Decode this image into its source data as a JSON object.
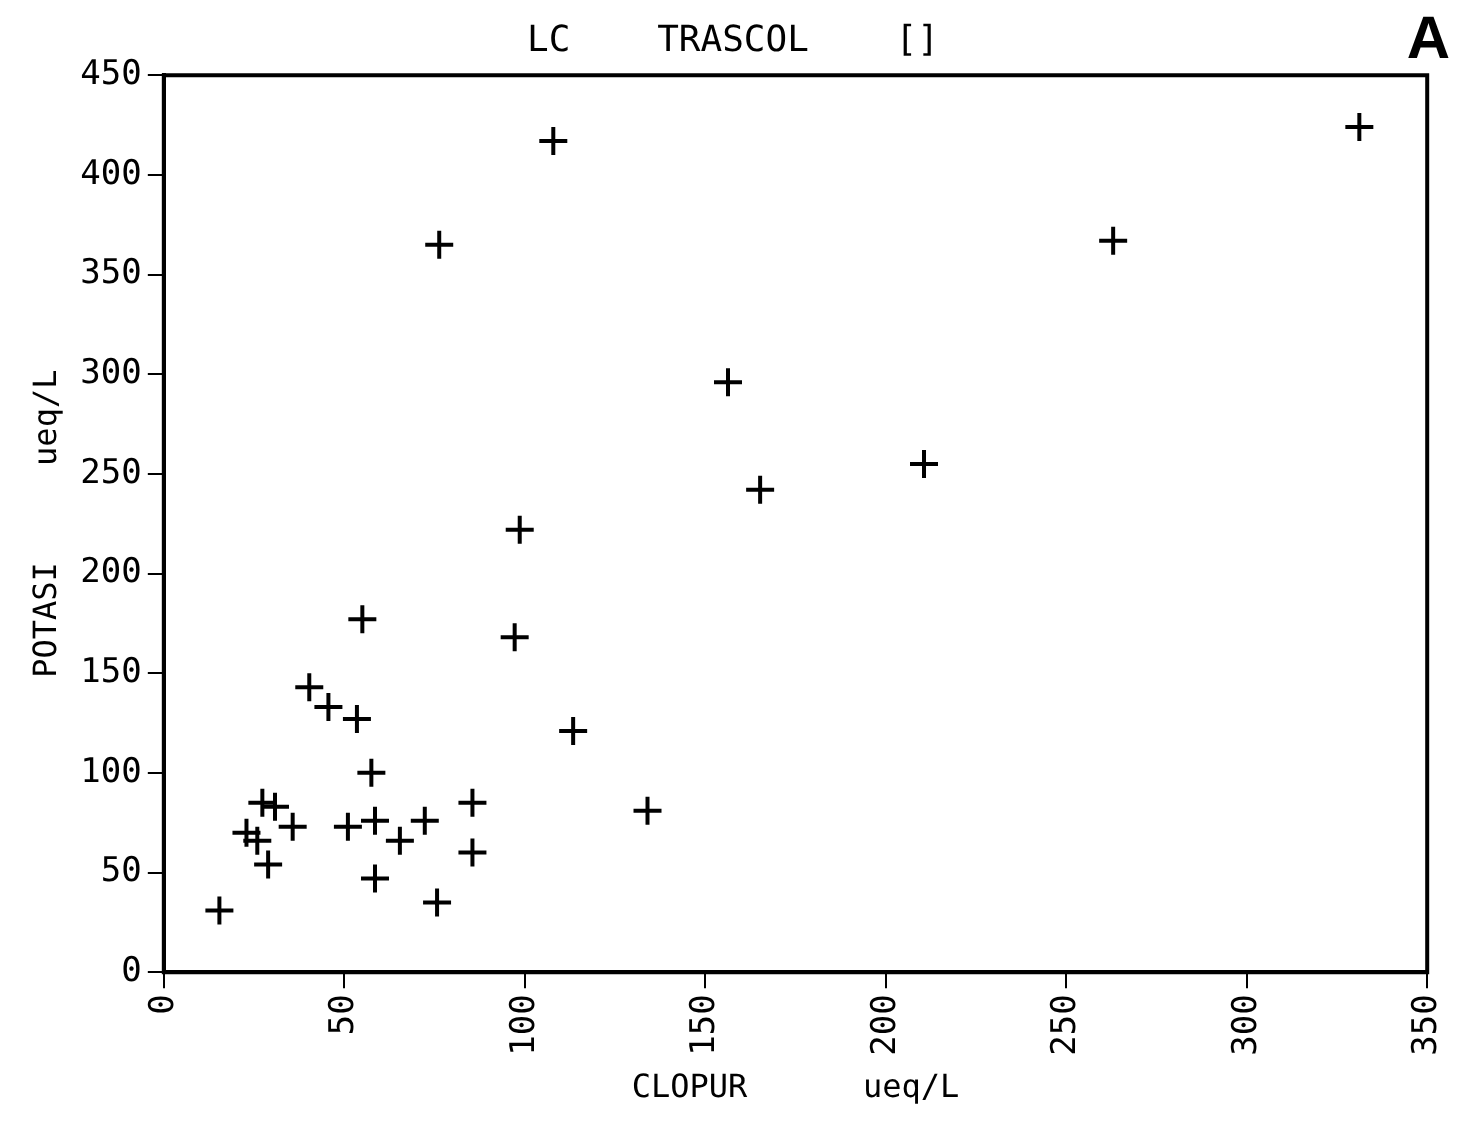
{
  "chart_data": {
    "type": "scatter",
    "title": "LC    TRASCOL    []",
    "xlabel": "CLOPUR      ueq/L",
    "ylabel": "POTASI     ueq/L",
    "annotations": [
      "A"
    ],
    "marker": "cross",
    "grid": false,
    "legend": false,
    "xlim": [
      0,
      350
    ],
    "xticks": [
      0,
      50,
      100,
      150,
      200,
      250,
      300,
      350
    ],
    "ylim": [
      0,
      450
    ],
    "yticks": [
      0,
      50,
      100,
      150,
      200,
      250,
      300,
      350,
      400,
      450
    ],
    "series": [
      {
        "color": "#000000",
        "x": [
          15.4,
          22.9,
          25.9,
          27.3,
          30.8,
          35.7,
          28.9,
          40.3,
          45.6,
          53.5,
          55,
          57.5,
          51,
          58.5,
          58.5,
          65.4,
          72.3,
          75.7,
          85.5,
          85.5,
          97.2,
          98.6,
          113.4,
          134,
          107.9,
          76.3,
          156.3,
          165.2,
          331.2,
          263,
          210.6
        ],
        "values": [
          31,
          70,
          66,
          85,
          83,
          73,
          54,
          143,
          133,
          127,
          177,
          100,
          73,
          76,
          47,
          66,
          76,
          35,
          85,
          60,
          168,
          222,
          121,
          81,
          417,
          365,
          296,
          242,
          424,
          367,
          255
        ]
      }
    ]
  }
}
